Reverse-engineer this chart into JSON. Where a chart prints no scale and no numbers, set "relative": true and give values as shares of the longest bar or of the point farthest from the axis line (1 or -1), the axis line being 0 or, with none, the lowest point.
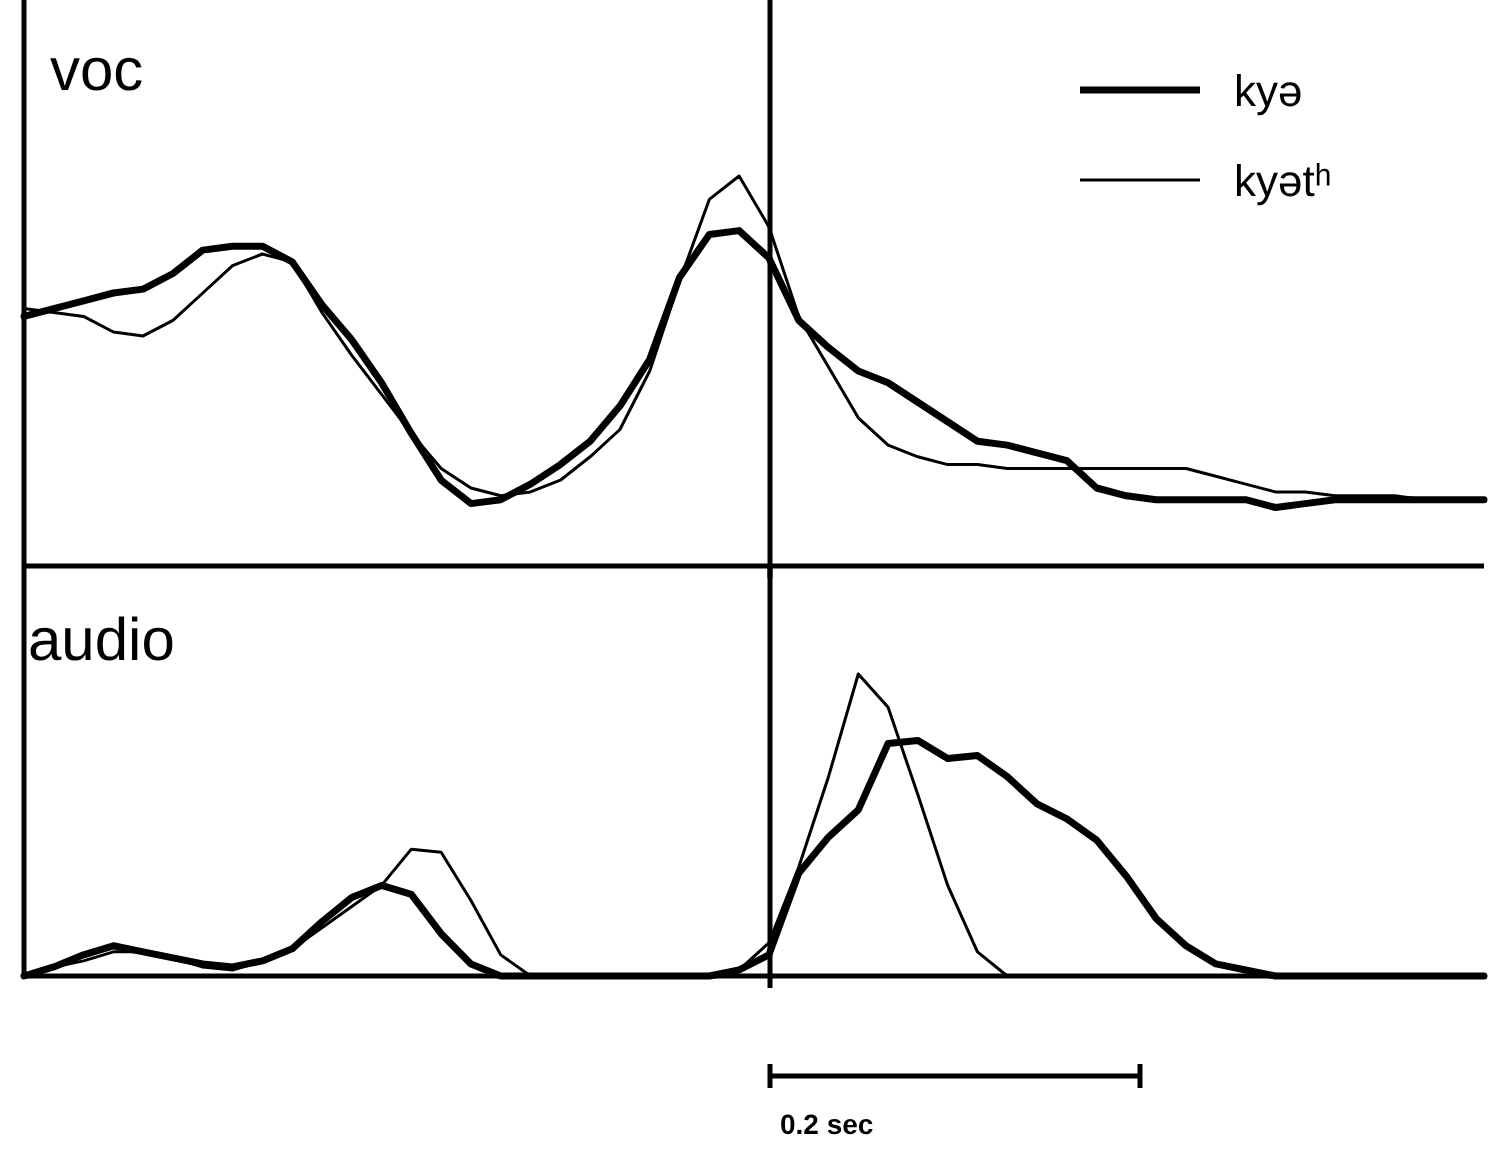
{
  "chart_data": [
    {
      "type": "line",
      "title": "voc",
      "relative": true,
      "legend": "top right",
      "marker": "none",
      "line_style": "solid",
      "categories": [
        null,
        null,
        null,
        null,
        null,
        null,
        null,
        null,
        null,
        null,
        null,
        null,
        null,
        null,
        null,
        null,
        null,
        null,
        null,
        null,
        null,
        null,
        null,
        null,
        null,
        null,
        null,
        null,
        null,
        null,
        null,
        null,
        null,
        null,
        null,
        null,
        null,
        null,
        null,
        null,
        null,
        null,
        null,
        null,
        null,
        null,
        null,
        null,
        null,
        null
      ],
      "series": [
        {
          "name": "kyə",
          "color": "#000000",
          "values": [
            0.64,
            0.66,
            0.68,
            0.7,
            0.71,
            0.75,
            0.81,
            0.82,
            0.82,
            0.78,
            0.67,
            0.58,
            0.47,
            0.34,
            0.22,
            0.16,
            0.17,
            0.21,
            0.26,
            0.32,
            0.41,
            0.53,
            0.74,
            0.85,
            0.86,
            0.79,
            0.63,
            0.56,
            0.5,
            0.47,
            0.42,
            0.37,
            0.32,
            0.31,
            0.29,
            0.27,
            0.2,
            0.18,
            0.17,
            0.17,
            0.17,
            0.17,
            0.15,
            0.16,
            0.17,
            0.17,
            0.17,
            0.17,
            0.17,
            0.17
          ]
        },
        {
          "name": "kyətʰ",
          "color": "#000000",
          "values": [
            0.66,
            0.65,
            0.64,
            0.6,
            0.59,
            0.63,
            0.7,
            0.77,
            0.8,
            0.78,
            0.65,
            0.54,
            0.44,
            0.34,
            0.25,
            0.2,
            0.18,
            0.19,
            0.22,
            0.28,
            0.35,
            0.5,
            0.73,
            0.94,
            1,
            0.87,
            0.64,
            0.51,
            0.38,
            0.31,
            0.28,
            0.26,
            0.26,
            0.25,
            0.25,
            0.25,
            0.25,
            0.25,
            0.25,
            0.25,
            0.23,
            0.21,
            0.19,
            0.19,
            0.18,
            0.18,
            0.18,
            0.17,
            0.17,
            0.17
          ]
        }
      ]
    },
    {
      "type": "line",
      "title": "audio",
      "relative": true,
      "marker": "none",
      "line_style": "solid",
      "categories": [
        null,
        null,
        null,
        null,
        null,
        null,
        null,
        null,
        null,
        null,
        null,
        null,
        null,
        null,
        null,
        null,
        null,
        null,
        null,
        null,
        null,
        null,
        null,
        null,
        null,
        null,
        null,
        null,
        null,
        null,
        null,
        null,
        null,
        null,
        null,
        null,
        null,
        null,
        null,
        null,
        null,
        null,
        null,
        null,
        null,
        null,
        null,
        null,
        null,
        null
      ],
      "annotations": [
        "0.2 sec"
      ],
      "series": [
        {
          "color": "#000000",
          "values": [
            0,
            0.03,
            0.07,
            0.1,
            0.08,
            0.06,
            0.04,
            0.03,
            0.05,
            0.09,
            0.18,
            0.26,
            0.3,
            0.27,
            0.14,
            0.04,
            0,
            0,
            0,
            0,
            0,
            0,
            0,
            0,
            0.02,
            0.07,
            0.34,
            0.46,
            0.55,
            0.77,
            0.78,
            0.72,
            0.73,
            0.66,
            0.57,
            0.52,
            0.45,
            0.33,
            0.19,
            0.1,
            0.04,
            0.02,
            0,
            0,
            0,
            0,
            0,
            0,
            0,
            0
          ]
        },
        {
          "color": "#000000",
          "values": [
            0,
            0.03,
            0.05,
            0.08,
            0.08,
            0.06,
            0.03,
            0.02,
            0.05,
            0.09,
            0.16,
            0.23,
            0.3,
            0.42,
            0.41,
            0.25,
            0.07,
            0,
            0,
            0,
            0,
            0,
            0,
            0,
            0.02,
            0.11,
            0.36,
            0.66,
            1,
            0.89,
            0.6,
            0.3,
            0.08,
            0,
            0,
            0,
            0,
            0,
            0,
            0,
            0,
            0,
            0,
            0,
            0,
            0,
            0,
            0,
            0,
            0
          ]
        }
      ]
    }
  ]
}
